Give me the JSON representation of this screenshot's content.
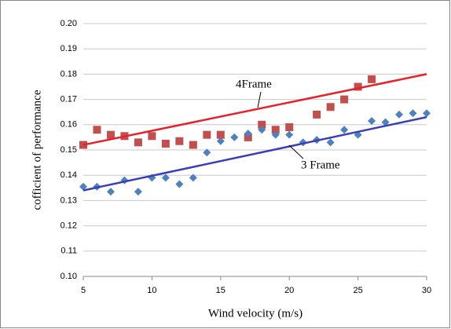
{
  "chart_data": {
    "type": "scatter",
    "xlabel": "Wind velocity (m/s)",
    "ylabel": "cofficient of performance",
    "xlim": [
      5,
      30
    ],
    "xticks": [
      5,
      10,
      15,
      20,
      25,
      30
    ],
    "ylim": [
      0.1,
      0.2
    ],
    "yticks": [
      {
        "value": 0.1,
        "label": "0.10"
      },
      0.11,
      0.12,
      0.13,
      0.14,
      0.15,
      0.16,
      0.17,
      0.18,
      0.19,
      {
        "value": 0.2,
        "label": "0.20"
      }
    ],
    "grid": true,
    "series": [
      {
        "name": "4Frame",
        "color": "#c0504d",
        "marker": "square",
        "trend_color": "#e8202a",
        "x": [
          5,
          6,
          7,
          8,
          9,
          10,
          11,
          12,
          13,
          14,
          15,
          17,
          18,
          19,
          20,
          22,
          23,
          24,
          25,
          26
        ],
        "values": [
          0.152,
          0.158,
          0.156,
          0.1555,
          0.153,
          0.1555,
          0.1525,
          0.1535,
          0.152,
          0.156,
          0.156,
          0.155,
          0.16,
          0.158,
          0.159,
          0.164,
          0.167,
          0.17,
          0.175,
          0.178
        ],
        "trend_x": [
          5,
          30
        ],
        "trend_y": [
          0.152,
          0.18
        ]
      },
      {
        "name": "3 Frame",
        "color": "#4f81bd",
        "marker": "diamond",
        "trend_color": "#3a3fb8",
        "x": [
          5,
          6,
          7,
          8,
          9,
          10,
          11,
          12,
          13,
          14,
          15,
          16,
          17,
          18,
          19,
          20,
          21,
          22,
          23,
          24,
          25,
          26,
          27,
          28,
          29,
          30
        ],
        "values": [
          0.1355,
          0.1355,
          0.1335,
          0.138,
          0.1335,
          0.139,
          0.139,
          0.1365,
          0.139,
          0.149,
          0.1535,
          0.155,
          0.1565,
          0.158,
          0.156,
          0.156,
          0.153,
          0.154,
          0.153,
          0.158,
          0.156,
          0.1615,
          0.161,
          0.164,
          0.1645,
          0.1645
        ],
        "trend_x": [
          5,
          30
        ],
        "trend_y": [
          0.134,
          0.163
        ]
      }
    ]
  }
}
